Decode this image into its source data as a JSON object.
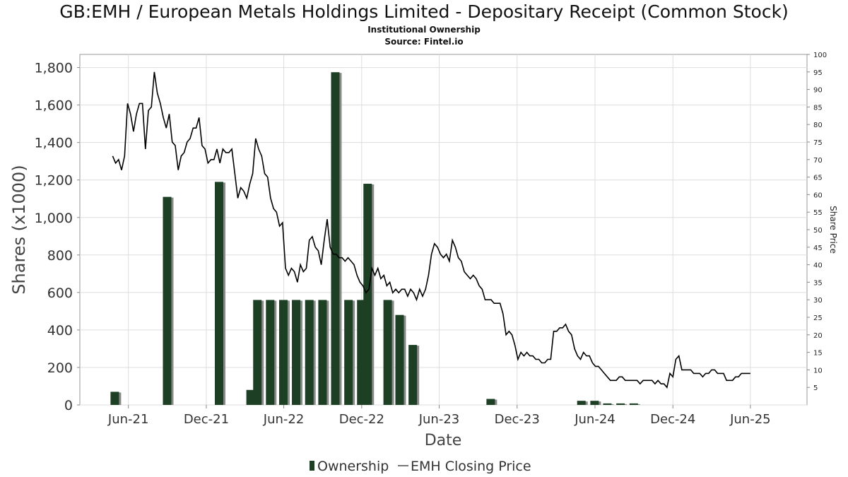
{
  "title": "GB:EMH / European Metals Holdings Limited - Depositary Receipt (Common Stock)",
  "subtitle": "Institutional Ownership",
  "source": "Source: Fintel.io",
  "colors": {
    "bar": "#1d4024",
    "bar_shadow": "#8a8a8a",
    "line": "#000000",
    "grid": "#dddddd",
    "plot_border": "#999999"
  },
  "chart_data": {
    "type": "bar",
    "xlabel": "Date",
    "ylabel": "Shares (x1000)",
    "y2label": "Share Price",
    "x_ticks": [
      "Jun-21",
      "Dec-21",
      "Jun-22",
      "Dec-22",
      "Jun-23",
      "Dec-23",
      "Jun-24",
      "Dec-24",
      "Jun-25"
    ],
    "y_ticks": [
      "0",
      "200",
      "400",
      "600",
      "800",
      "1,000",
      "1,200",
      "1,400",
      "1,600",
      "1,800"
    ],
    "y2_ticks": [
      "5",
      "10",
      "15",
      "20",
      "25",
      "30",
      "35",
      "40",
      "45",
      "50",
      "55",
      "60",
      "65",
      "70",
      "75",
      "80",
      "85",
      "90",
      "95",
      "100"
    ],
    "ylim": [
      0,
      1870
    ],
    "y2lim": [
      0,
      100
    ],
    "xlim": [
      "2021-02-07",
      "2025-10-12"
    ],
    "legend": [
      "Ownership",
      "EMH Closing Price"
    ],
    "legend_position": "bottom",
    "grid": true,
    "series": [
      {
        "name": "Ownership",
        "kind": "bar",
        "points": [
          {
            "date": "2021-04-30",
            "value": 70
          },
          {
            "date": "2021-08-31",
            "value": 1110
          },
          {
            "date": "2021-12-31",
            "value": 1190
          },
          {
            "date": "2022-03-15",
            "value": 80
          },
          {
            "date": "2022-03-31",
            "value": 560
          },
          {
            "date": "2022-04-30",
            "value": 560
          },
          {
            "date": "2022-05-31",
            "value": 560
          },
          {
            "date": "2022-06-30",
            "value": 560
          },
          {
            "date": "2022-07-31",
            "value": 560
          },
          {
            "date": "2022-08-31",
            "value": 560
          },
          {
            "date": "2022-09-30",
            "value": 1775
          },
          {
            "date": "2022-10-31",
            "value": 560
          },
          {
            "date": "2022-11-30",
            "value": 560
          },
          {
            "date": "2022-12-15",
            "value": 1180
          },
          {
            "date": "2023-01-31",
            "value": 560
          },
          {
            "date": "2023-02-28",
            "value": 480
          },
          {
            "date": "2023-03-31",
            "value": 320
          },
          {
            "date": "2023-09-30",
            "value": 32
          },
          {
            "date": "2024-04-30",
            "value": 22
          },
          {
            "date": "2024-05-31",
            "value": 22
          },
          {
            "date": "2024-06-30",
            "value": 8
          },
          {
            "date": "2024-07-31",
            "value": 8
          },
          {
            "date": "2024-08-31",
            "value": 8
          }
        ]
      },
      {
        "name": "EMH Closing Price",
        "kind": "line",
        "axis": "right",
        "points": [
          [
            "2021-04-25",
            71
          ],
          [
            "2021-05-02",
            69
          ],
          [
            "2021-05-09",
            70
          ],
          [
            "2021-05-16",
            67
          ],
          [
            "2021-05-23",
            71
          ],
          [
            "2021-05-30",
            86
          ],
          [
            "2021-06-06",
            83
          ],
          [
            "2021-06-13",
            78
          ],
          [
            "2021-06-20",
            83
          ],
          [
            "2021-06-27",
            86
          ],
          [
            "2021-07-04",
            86
          ],
          [
            "2021-07-11",
            73
          ],
          [
            "2021-07-18",
            84
          ],
          [
            "2021-07-25",
            85
          ],
          [
            "2021-08-01",
            95
          ],
          [
            "2021-08-08",
            89
          ],
          [
            "2021-08-15",
            86
          ],
          [
            "2021-08-22",
            82
          ],
          [
            "2021-08-29",
            79
          ],
          [
            "2021-09-05",
            83
          ],
          [
            "2021-09-12",
            75
          ],
          [
            "2021-09-19",
            74
          ],
          [
            "2021-09-26",
            67
          ],
          [
            "2021-10-03",
            71
          ],
          [
            "2021-10-10",
            72
          ],
          [
            "2021-10-17",
            75
          ],
          [
            "2021-10-24",
            76
          ],
          [
            "2021-10-31",
            79
          ],
          [
            "2021-11-07",
            79
          ],
          [
            "2021-11-14",
            82
          ],
          [
            "2021-11-21",
            74
          ],
          [
            "2021-11-28",
            73
          ],
          [
            "2021-12-05",
            69
          ],
          [
            "2021-12-12",
            70
          ],
          [
            "2021-12-19",
            70
          ],
          [
            "2021-12-26",
            73
          ],
          [
            "2022-01-02",
            69
          ],
          [
            "2022-01-09",
            73
          ],
          [
            "2022-01-16",
            72
          ],
          [
            "2022-01-23",
            72
          ],
          [
            "2022-01-30",
            73
          ],
          [
            "2022-02-06",
            66
          ],
          [
            "2022-02-13",
            59
          ],
          [
            "2022-02-20",
            62
          ],
          [
            "2022-02-27",
            61
          ],
          [
            "2022-03-06",
            59
          ],
          [
            "2022-03-13",
            63
          ],
          [
            "2022-03-20",
            66
          ],
          [
            "2022-03-27",
            76
          ],
          [
            "2022-04-03",
            73
          ],
          [
            "2022-04-10",
            71
          ],
          [
            "2022-04-17",
            66
          ],
          [
            "2022-04-24",
            65
          ],
          [
            "2022-05-01",
            59
          ],
          [
            "2022-05-08",
            56
          ],
          [
            "2022-05-15",
            55
          ],
          [
            "2022-05-22",
            51
          ],
          [
            "2022-05-29",
            52
          ],
          [
            "2022-06-05",
            39
          ],
          [
            "2022-06-12",
            37
          ],
          [
            "2022-06-19",
            39
          ],
          [
            "2022-06-26",
            38
          ],
          [
            "2022-07-03",
            35
          ],
          [
            "2022-07-10",
            40
          ],
          [
            "2022-07-17",
            38
          ],
          [
            "2022-07-24",
            39
          ],
          [
            "2022-07-31",
            47
          ],
          [
            "2022-08-07",
            48
          ],
          [
            "2022-08-14",
            45
          ],
          [
            "2022-08-21",
            44
          ],
          [
            "2022-08-28",
            40
          ],
          [
            "2022-09-04",
            47
          ],
          [
            "2022-09-11",
            53
          ],
          [
            "2022-09-18",
            45
          ],
          [
            "2022-09-25",
            43
          ],
          [
            "2022-10-02",
            43
          ],
          [
            "2022-10-09",
            42
          ],
          [
            "2022-10-16",
            42
          ],
          [
            "2022-10-23",
            41
          ],
          [
            "2022-10-30",
            42
          ],
          [
            "2022-11-06",
            41
          ],
          [
            "2022-11-13",
            40
          ],
          [
            "2022-11-20",
            37
          ],
          [
            "2022-11-27",
            35
          ],
          [
            "2022-12-04",
            34
          ],
          [
            "2022-12-11",
            32
          ],
          [
            "2022-12-18",
            33
          ],
          [
            "2022-12-25",
            39
          ],
          [
            "2023-01-01",
            37
          ],
          [
            "2023-01-08",
            39
          ],
          [
            "2023-01-15",
            36
          ],
          [
            "2023-01-22",
            37
          ],
          [
            "2023-01-29",
            34
          ],
          [
            "2023-02-05",
            35
          ],
          [
            "2023-02-12",
            32
          ],
          [
            "2023-02-19",
            33
          ],
          [
            "2023-02-26",
            32
          ],
          [
            "2023-03-05",
            33
          ],
          [
            "2023-03-12",
            33
          ],
          [
            "2023-03-19",
            31
          ],
          [
            "2023-03-26",
            33
          ],
          [
            "2023-04-02",
            32
          ],
          [
            "2023-04-09",
            30
          ],
          [
            "2023-04-16",
            33
          ],
          [
            "2023-04-23",
            31
          ],
          [
            "2023-04-30",
            33
          ],
          [
            "2023-05-07",
            37
          ],
          [
            "2023-05-14",
            43
          ],
          [
            "2023-05-21",
            46
          ],
          [
            "2023-05-28",
            45
          ],
          [
            "2023-06-04",
            43
          ],
          [
            "2023-06-11",
            42
          ],
          [
            "2023-06-18",
            43
          ],
          [
            "2023-06-25",
            41
          ],
          [
            "2023-07-02",
            47
          ],
          [
            "2023-07-09",
            45
          ],
          [
            "2023-07-16",
            42
          ],
          [
            "2023-07-23",
            41
          ],
          [
            "2023-07-30",
            38
          ],
          [
            "2023-08-06",
            37
          ],
          [
            "2023-08-13",
            36
          ],
          [
            "2023-08-20",
            37
          ],
          [
            "2023-08-27",
            36
          ],
          [
            "2023-09-03",
            34
          ],
          [
            "2023-09-10",
            33
          ],
          [
            "2023-09-17",
            30
          ],
          [
            "2023-09-24",
            30
          ],
          [
            "2023-10-01",
            30
          ],
          [
            "2023-10-08",
            29
          ],
          [
            "2023-10-15",
            29
          ],
          [
            "2023-10-22",
            29
          ],
          [
            "2023-10-29",
            26
          ],
          [
            "2023-11-05",
            20
          ],
          [
            "2023-11-12",
            21
          ],
          [
            "2023-11-19",
            20
          ],
          [
            "2023-11-26",
            17
          ],
          [
            "2023-12-03",
            13
          ],
          [
            "2023-12-10",
            15
          ],
          [
            "2023-12-17",
            14
          ],
          [
            "2023-12-24",
            15
          ],
          [
            "2023-12-31",
            14
          ],
          [
            "2024-01-07",
            14
          ],
          [
            "2024-01-14",
            13
          ],
          [
            "2024-01-21",
            13
          ],
          [
            "2024-01-28",
            12
          ],
          [
            "2024-02-04",
            12
          ],
          [
            "2024-02-11",
            13
          ],
          [
            "2024-02-18",
            13
          ],
          [
            "2024-02-25",
            21
          ],
          [
            "2024-03-03",
            21
          ],
          [
            "2024-03-10",
            22
          ],
          [
            "2024-03-17",
            22
          ],
          [
            "2024-03-24",
            23
          ],
          [
            "2024-03-31",
            21
          ],
          [
            "2024-04-07",
            20
          ],
          [
            "2024-04-14",
            16
          ],
          [
            "2024-04-21",
            14
          ],
          [
            "2024-04-28",
            13
          ],
          [
            "2024-05-05",
            15
          ],
          [
            "2024-05-12",
            14
          ],
          [
            "2024-05-19",
            14
          ],
          [
            "2024-05-26",
            12
          ],
          [
            "2024-06-02",
            11
          ],
          [
            "2024-06-09",
            11
          ],
          [
            "2024-06-16",
            10
          ],
          [
            "2024-06-23",
            9
          ],
          [
            "2024-06-30",
            8
          ],
          [
            "2024-07-07",
            7
          ],
          [
            "2024-07-14",
            7
          ],
          [
            "2024-07-21",
            7
          ],
          [
            "2024-07-28",
            8
          ],
          [
            "2024-08-04",
            8
          ],
          [
            "2024-08-11",
            7
          ],
          [
            "2024-08-18",
            7
          ],
          [
            "2024-08-25",
            7
          ],
          [
            "2024-09-01",
            7
          ],
          [
            "2024-09-08",
            7
          ],
          [
            "2024-09-15",
            6
          ],
          [
            "2024-09-22",
            7
          ],
          [
            "2024-09-29",
            7
          ],
          [
            "2024-10-06",
            7
          ],
          [
            "2024-10-13",
            7
          ],
          [
            "2024-10-20",
            6
          ],
          [
            "2024-10-27",
            7
          ],
          [
            "2024-11-03",
            6
          ],
          [
            "2024-11-10",
            6
          ],
          [
            "2024-11-17",
            5
          ],
          [
            "2024-11-24",
            9
          ],
          [
            "2024-12-01",
            8
          ],
          [
            "2024-12-08",
            13
          ],
          [
            "2024-12-15",
            14
          ],
          [
            "2024-12-22",
            10
          ],
          [
            "2024-12-29",
            10
          ],
          [
            "2025-01-05",
            10
          ],
          [
            "2025-01-12",
            10
          ],
          [
            "2025-01-19",
            9
          ],
          [
            "2025-01-26",
            9
          ],
          [
            "2025-02-02",
            9
          ],
          [
            "2025-02-09",
            8
          ],
          [
            "2025-02-16",
            9
          ],
          [
            "2025-02-23",
            9
          ],
          [
            "2025-03-02",
            10
          ],
          [
            "2025-03-09",
            10
          ],
          [
            "2025-03-16",
            9
          ],
          [
            "2025-03-23",
            9
          ],
          [
            "2025-03-30",
            9
          ],
          [
            "2025-04-06",
            7
          ],
          [
            "2025-04-13",
            7
          ],
          [
            "2025-04-20",
            7
          ],
          [
            "2025-04-27",
            8
          ],
          [
            "2025-05-04",
            8
          ],
          [
            "2025-05-11",
            9
          ],
          [
            "2025-05-18",
            9
          ],
          [
            "2025-05-25",
            9
          ],
          [
            "2025-06-01",
            9
          ]
        ]
      }
    ]
  }
}
